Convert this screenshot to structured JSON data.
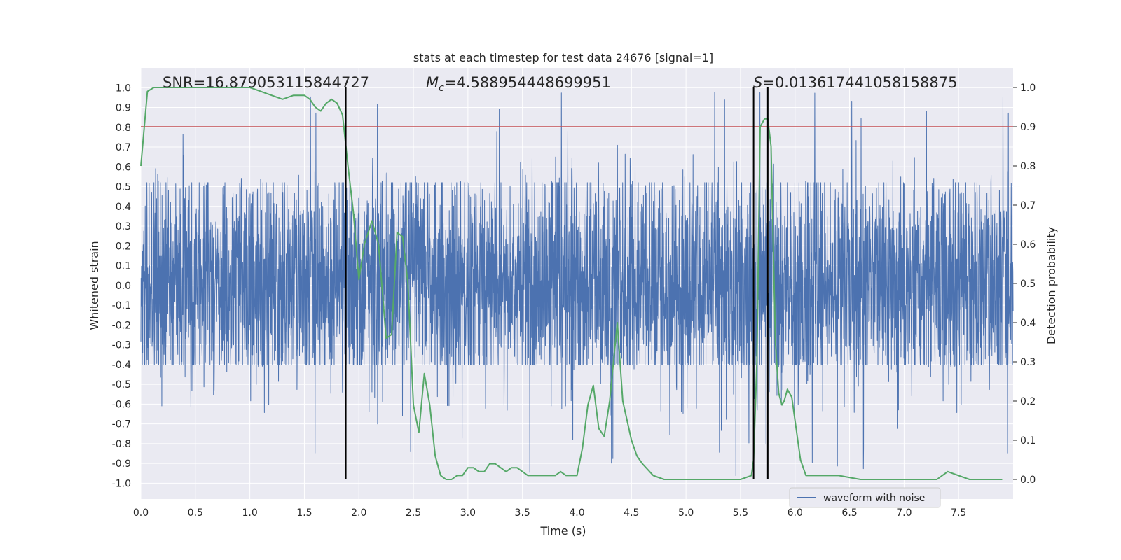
{
  "chart_data": {
    "type": "line",
    "title": "stats at each timestep for test data 24676 [signal=1]",
    "xlabel": "Time (s)",
    "ylabel": "Whitened strain",
    "y2label": "Detection probability",
    "xlim": [
      0.0,
      8.0
    ],
    "ylim": [
      -1.08,
      1.1
    ],
    "y2lim": [
      -0.05,
      1.05
    ],
    "xticks": [
      "0.0",
      "0.5",
      "1.0",
      "1.5",
      "2.0",
      "2.5",
      "3.0",
      "3.5",
      "4.0",
      "4.5",
      "5.0",
      "5.5",
      "6.0",
      "6.5",
      "7.0",
      "7.5"
    ],
    "yticks": [
      "1.0",
      "0.9",
      "0.8",
      "0.7",
      "0.6",
      "0.5",
      "0.4",
      "0.3",
      "0.2",
      "0.1",
      "0.0",
      "-0.1",
      "-0.2",
      "-0.3",
      "-0.4",
      "-0.5",
      "-0.6",
      "-0.7",
      "-0.8",
      "-0.9",
      "-1.0"
    ],
    "y2ticks": [
      "1.0",
      "0.9",
      "0.8",
      "0.7",
      "0.6",
      "0.5",
      "0.4",
      "0.3",
      "0.2",
      "0.1",
      "0.0"
    ],
    "grid": true,
    "legend": {
      "position": "lower-right",
      "entries": [
        "waveform with noise"
      ]
    },
    "annotations": {
      "snr": "SNR=16.879053115844727",
      "mc_symbol": "M",
      "mc_sub": "c",
      "mc_value": "=4.588954448699951",
      "s_symbol": "S",
      "s_value": "=0.013617441058158875"
    },
    "series": [
      {
        "name": "waveform with noise",
        "axis": "left",
        "style": "noise-band",
        "color": "#4c72b0",
        "typical_amplitude": [
          -0.4,
          0.52
        ],
        "peak_extremes": [
          -1.0,
          1.0
        ]
      },
      {
        "name": "detection probability",
        "axis": "right",
        "color": "#55a868",
        "x": [
          0.0,
          0.06,
          0.12,
          0.2,
          0.3,
          0.5,
          0.7,
          0.9,
          1.0,
          1.1,
          1.2,
          1.3,
          1.4,
          1.45,
          1.5,
          1.55,
          1.6,
          1.65,
          1.7,
          1.75,
          1.8,
          1.85,
          1.9,
          1.95,
          2.0,
          2.05,
          2.12,
          2.18,
          2.25,
          2.3,
          2.35,
          2.4,
          2.45,
          2.5,
          2.55,
          2.6,
          2.65,
          2.7,
          2.75,
          2.8,
          2.85,
          2.9,
          2.95,
          3.0,
          3.05,
          3.1,
          3.15,
          3.2,
          3.25,
          3.3,
          3.35,
          3.4,
          3.45,
          3.5,
          3.55,
          3.6,
          3.7,
          3.8,
          3.85,
          3.9,
          3.95,
          4.0,
          4.05,
          4.1,
          4.15,
          4.2,
          4.25,
          4.3,
          4.37,
          4.42,
          4.5,
          4.55,
          4.6,
          4.7,
          4.8,
          5.0,
          5.2,
          5.4,
          5.5,
          5.6,
          5.62,
          5.65,
          5.68,
          5.72,
          5.75,
          5.78,
          5.8,
          5.82,
          5.85,
          5.88,
          5.9,
          5.93,
          5.97,
          6.0,
          6.05,
          6.1,
          6.15,
          6.2,
          6.3,
          6.4,
          6.6,
          6.8,
          7.0,
          7.2,
          7.3,
          7.35,
          7.4,
          7.5,
          7.6,
          7.7,
          7.9
        ],
        "y": [
          0.8,
          0.99,
          1.0,
          1.0,
          1.0,
          1.0,
          1.0,
          1.0,
          1.0,
          0.99,
          0.98,
          0.97,
          0.98,
          0.98,
          0.98,
          0.97,
          0.95,
          0.94,
          0.96,
          0.97,
          0.96,
          0.93,
          0.8,
          0.68,
          0.51,
          0.6,
          0.66,
          0.6,
          0.36,
          0.37,
          0.63,
          0.62,
          0.5,
          0.19,
          0.12,
          0.27,
          0.19,
          0.06,
          0.01,
          0.0,
          0.0,
          0.01,
          0.01,
          0.03,
          0.03,
          0.02,
          0.02,
          0.04,
          0.04,
          0.03,
          0.02,
          0.03,
          0.03,
          0.02,
          0.01,
          0.01,
          0.01,
          0.01,
          0.02,
          0.01,
          0.01,
          0.01,
          0.08,
          0.19,
          0.24,
          0.13,
          0.11,
          0.2,
          0.4,
          0.2,
          0.1,
          0.06,
          0.04,
          0.01,
          0.0,
          0.0,
          0.0,
          0.0,
          0.0,
          0.01,
          0.05,
          0.3,
          0.9,
          0.92,
          0.92,
          0.85,
          0.6,
          0.35,
          0.22,
          0.19,
          0.2,
          0.23,
          0.21,
          0.15,
          0.05,
          0.01,
          0.01,
          0.01,
          0.01,
          0.01,
          0.0,
          0.0,
          0.0,
          0.0,
          0.0,
          0.01,
          0.02,
          0.01,
          0.0,
          0.0,
          0.0
        ]
      }
    ],
    "threshold_line": {
      "axis": "right",
      "y": 0.9,
      "color": "#c44e52"
    },
    "vertical_markers": [
      {
        "x": 1.88,
        "color": "#000000"
      },
      {
        "x": 5.62,
        "color": "#000000"
      },
      {
        "x": 5.75,
        "color": "#000000"
      }
    ]
  }
}
